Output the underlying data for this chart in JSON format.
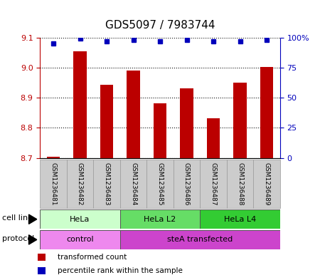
{
  "title": "GDS5097 / 7983744",
  "samples": [
    "GSM1236481",
    "GSM1236482",
    "GSM1236483",
    "GSM1236484",
    "GSM1236485",
    "GSM1236486",
    "GSM1236487",
    "GSM1236488",
    "GSM1236489"
  ],
  "bar_values": [
    8.703,
    9.055,
    8.942,
    8.99,
    8.882,
    8.932,
    8.832,
    8.95,
    9.001
  ],
  "percentile_values": [
    95,
    99,
    97,
    98,
    97,
    98,
    97,
    97,
    98
  ],
  "ylim_left": [
    8.7,
    9.1
  ],
  "ylim_right": [
    0,
    100
  ],
  "yticks_left": [
    8.7,
    8.8,
    8.9,
    9.0,
    9.1
  ],
  "yticks_right": [
    0,
    25,
    50,
    75,
    100
  ],
  "ytick_labels_right": [
    "0",
    "25",
    "50",
    "75",
    "100%"
  ],
  "bar_color": "#bb0000",
  "dot_color": "#0000bb",
  "cell_line_groups": [
    {
      "label": "HeLa",
      "start": 0,
      "end": 3,
      "color": "#ccffcc"
    },
    {
      "label": "HeLa L2",
      "start": 3,
      "end": 6,
      "color": "#66dd66"
    },
    {
      "label": "HeLa L4",
      "start": 6,
      "end": 9,
      "color": "#33cc33"
    }
  ],
  "protocol_groups": [
    {
      "label": "control",
      "start": 0,
      "end": 3,
      "color": "#ee88ee"
    },
    {
      "label": "steA transfected",
      "start": 3,
      "end": 9,
      "color": "#cc44cc"
    }
  ],
  "legend_items": [
    {
      "color": "#bb0000",
      "label": "transformed count"
    },
    {
      "color": "#0000bb",
      "label": "percentile rank within the sample"
    }
  ],
  "sample_box_color": "#cccccc",
  "sample_box_edge": "#999999",
  "background_color": "#ffffff",
  "left_tick_color": "#bb0000",
  "right_tick_color": "#0000bb",
  "grid_color": "#111111",
  "label_fontsize": 8,
  "sample_fontsize": 6.5,
  "title_fontsize": 11
}
